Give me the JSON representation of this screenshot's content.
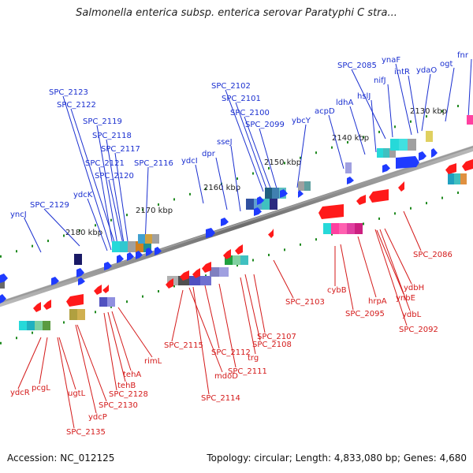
{
  "title": "Salmonella enterica subsp. enterica serovar Paratyphi C stra...",
  "footer": {
    "accession": "Accession: NC_012125",
    "stats": "Topology: circular; Length: 4,833,080 bp; Genes: 4,680"
  },
  "colors": {
    "forward_gene": "#1f3bff",
    "reverse_gene": "#ff1a1a",
    "forward_label": "#1a2fd0",
    "reverse_label": "#d41a1a",
    "backbone": "#8a8a8a",
    "tick": "#1f8a1f"
  },
  "scale_labels": [
    "2130 kbp",
    "2140 kbp",
    "2150 kbp",
    "2160 kbp",
    "2170 kbp",
    "2180 kbp"
  ],
  "forward_labels": [
    "SPC_2123",
    "SPC_2122",
    "SPC_2119",
    "SPC_2118",
    "SPC_2117",
    "SPC_2121",
    "SPC_2120",
    "SPC_2116",
    "ydcK",
    "SPC_2129",
    "yncJ",
    "ydcI",
    "dpr",
    "sseJ",
    "SPC_2102",
    "SPC_2101",
    "SPC_2100",
    "SPC_2099",
    "ybcY",
    "acpD",
    "ldhA",
    "hslJ",
    "SPC_2085",
    "nifJ",
    "ynaF",
    "intR",
    "ydaO",
    "ogt",
    "fnr"
  ],
  "reverse_labels": [
    "ydcR",
    "pcgL",
    "ugtL",
    "SPC_2135",
    "ydcP",
    "SPC_2130",
    "SPC_2128",
    "tehB",
    "tehA",
    "rimL",
    "SPC_2115",
    "mdoD",
    "SPC_2114",
    "SPC_2112",
    "SPC_2111",
    "trg",
    "SPC_2108",
    "SPC_2107",
    "SPC_2103",
    "cybB",
    "SPC_2095",
    "hrpA",
    "ynbE",
    "ydbH",
    "ydbL",
    "SPC_2092",
    "SPC_2086"
  ]
}
